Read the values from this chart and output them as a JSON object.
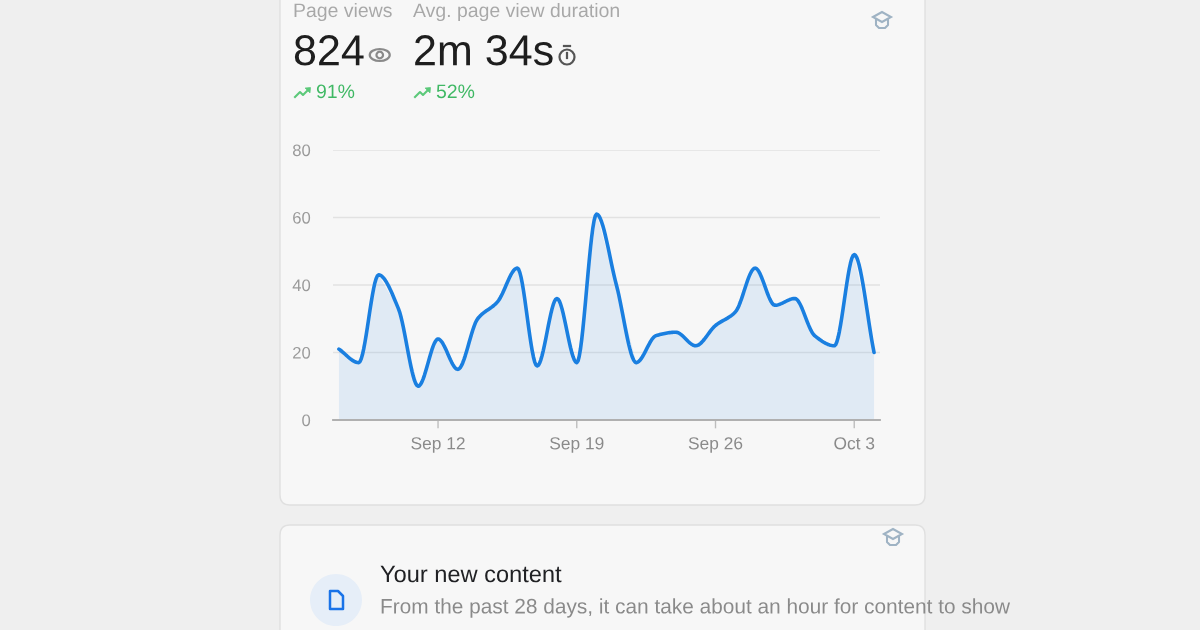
{
  "chart_data": [
    {
      "type": "other",
      "annotations": [
        "Page views",
        "824",
        "91%",
        "Avg. page view duration",
        "2m 34s",
        "52%"
      ]
    },
    {
      "type": "area",
      "categories": [
        null,
        null,
        null,
        null,
        null,
        "Sep 12",
        null,
        null,
        null,
        null,
        null,
        null,
        "Sep 19",
        null,
        null,
        null,
        null,
        null,
        null,
        "Sep 26",
        null,
        null,
        null,
        null,
        null,
        null,
        "Oct 3",
        null
      ],
      "values": [
        21,
        17,
        43,
        33,
        10,
        24,
        15,
        30,
        35,
        45,
        16,
        36,
        17,
        61,
        40,
        17,
        25,
        26,
        22,
        28,
        32,
        45,
        34,
        36,
        25,
        22,
        49,
        20
      ],
      "color": "#1a7fe0",
      "ylim": [
        0,
        80
      ],
      "yticks": [
        0,
        20,
        40,
        60,
        80
      ],
      "grid": "y"
    },
    {
      "type": "other",
      "title": "Your new content",
      "annotations": [
        "From the past 28 days, it can take about an hour for content to show"
      ]
    }
  ]
}
